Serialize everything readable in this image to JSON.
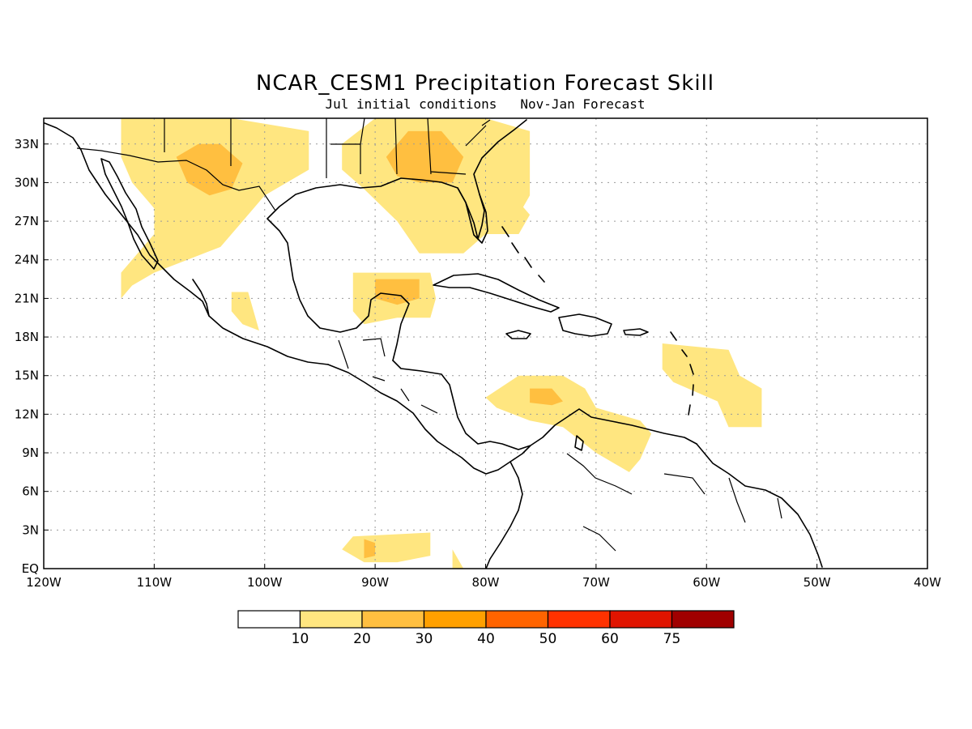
{
  "title": "NCAR_CESM1 Precipitation Forecast Skill",
  "subtitle": "Jul initial conditions   Nov-Jan Forecast",
  "chart_data": {
    "type": "heatmap",
    "title": "NCAR_CESM1 Precipitation Forecast Skill",
    "subtitle": "Jul initial conditions   Nov-Jan Forecast",
    "lon_range": [
      -120,
      -40
    ],
    "lat_range": [
      0,
      35
    ],
    "x_ticks": [
      "120W",
      "110W",
      "100W",
      "90W",
      "80W",
      "70W",
      "60W",
      "50W",
      "40W"
    ],
    "y_ticks": [
      "EQ",
      "3N",
      "6N",
      "9N",
      "12N",
      "15N",
      "18N",
      "21N",
      "24N",
      "27N",
      "30N",
      "33N"
    ],
    "grid": true,
    "colorbar": {
      "placement": "bottom",
      "labels": [
        "10",
        "20",
        "30",
        "40",
        "50",
        "60",
        "75"
      ],
      "colors": [
        "#ffffff",
        "#ffe680",
        "#ffbf40",
        "#ffa000",
        "#ff6400",
        "#ff3200",
        "#e01400",
        "#a00000"
      ]
    },
    "regions": [
      {
        "name": "n-mexico-texas",
        "level": 1,
        "points": [
          [
            -113,
            35
          ],
          [
            -103,
            35
          ],
          [
            -96,
            34
          ],
          [
            -96,
            31
          ],
          [
            -100,
            29
          ],
          [
            -102,
            27
          ],
          [
            -104,
            25
          ],
          [
            -107,
            24
          ],
          [
            -110,
            23
          ],
          [
            -112,
            22
          ],
          [
            -113,
            21
          ],
          [
            -113,
            23
          ],
          [
            -110,
            26
          ],
          [
            -110,
            28
          ],
          [
            -112,
            30
          ],
          [
            -113,
            32
          ]
        ]
      },
      {
        "name": "texas-core",
        "level": 2,
        "points": [
          [
            -108,
            32
          ],
          [
            -106,
            33
          ],
          [
            -104,
            33
          ],
          [
            -102,
            31.5
          ],
          [
            -103,
            29.5
          ],
          [
            -105,
            29
          ],
          [
            -107,
            30
          ]
        ]
      },
      {
        "name": "se-us",
        "level": 1,
        "points": [
          [
            -93,
            33
          ],
          [
            -90,
            35
          ],
          [
            -85,
            35
          ],
          [
            -80,
            35
          ],
          [
            -76,
            34
          ],
          [
            -76,
            29
          ],
          [
            -78,
            26
          ],
          [
            -80,
            26
          ],
          [
            -82,
            24.5
          ],
          [
            -86,
            24.5
          ],
          [
            -88,
            27
          ],
          [
            -91,
            29.5
          ],
          [
            -93,
            31
          ]
        ]
      },
      {
        "name": "se-us-core",
        "level": 2,
        "points": [
          [
            -89,
            32
          ],
          [
            -87,
            34
          ],
          [
            -84,
            34
          ],
          [
            -82,
            32
          ],
          [
            -83,
            30
          ],
          [
            -86,
            30
          ],
          [
            -88,
            30.5
          ]
        ]
      },
      {
        "name": "yucatan",
        "level": 1,
        "points": [
          [
            -92,
            23
          ],
          [
            -85,
            23
          ],
          [
            -84.5,
            21
          ],
          [
            -85,
            19.5
          ],
          [
            -88,
            19.5
          ],
          [
            -91,
            19
          ],
          [
            -92,
            20
          ]
        ]
      },
      {
        "name": "yucatan-core",
        "level": 2,
        "points": [
          [
            -90,
            22.5
          ],
          [
            -86,
            22.5
          ],
          [
            -86,
            21
          ],
          [
            -88,
            20.5
          ],
          [
            -90,
            21
          ]
        ]
      },
      {
        "name": "w-mexico",
        "level": 1,
        "points": [
          [
            -103,
            21.5
          ],
          [
            -101.5,
            21.5
          ],
          [
            -101,
            20
          ],
          [
            -100.5,
            18.5
          ],
          [
            -102,
            19
          ],
          [
            -103,
            20
          ]
        ]
      },
      {
        "name": "caribbean",
        "level": 1,
        "points": [
          [
            -80,
            13.3
          ],
          [
            -77,
            15
          ],
          [
            -73,
            15
          ],
          [
            -71,
            14
          ],
          [
            -70,
            12.5
          ],
          [
            -66,
            11.5
          ],
          [
            -65,
            10.5
          ],
          [
            -66,
            8.5
          ],
          [
            -67,
            7.5
          ],
          [
            -70,
            9
          ],
          [
            -73,
            11
          ],
          [
            -76,
            11.5
          ],
          [
            -79,
            12.5
          ]
        ]
      },
      {
        "name": "caribbean-core",
        "level": 2,
        "points": [
          [
            -76,
            14
          ],
          [
            -74,
            14
          ],
          [
            -73,
            13
          ],
          [
            -74,
            12.7
          ],
          [
            -76,
            12.9
          ]
        ]
      },
      {
        "name": "lesser-antilles",
        "level": 1,
        "points": [
          [
            -64,
            17.5
          ],
          [
            -58,
            17
          ],
          [
            -57,
            15
          ],
          [
            -55,
            14
          ],
          [
            -55,
            11
          ],
          [
            -58,
            11
          ],
          [
            -59,
            13
          ],
          [
            -63,
            14.5
          ],
          [
            -64,
            15.5
          ]
        ]
      },
      {
        "name": "florida-bahamas",
        "level": 1,
        "points": [
          [
            -79,
            27.5
          ],
          [
            -77,
            28.5
          ],
          [
            -76,
            27.5
          ],
          [
            -77,
            26
          ],
          [
            -79,
            26
          ]
        ]
      },
      {
        "name": "eq-pacific",
        "level": 1,
        "points": [
          [
            -92,
            2.5
          ],
          [
            -85,
            2.8
          ],
          [
            -85,
            1
          ],
          [
            -88,
            0.5
          ],
          [
            -91,
            0.5
          ],
          [
            -93,
            1.5
          ]
        ]
      },
      {
        "name": "eq-pacific-core",
        "level": 2,
        "points": [
          [
            -91,
            2.3
          ],
          [
            -90,
            2
          ],
          [
            -90,
            1
          ],
          [
            -91,
            0.8
          ]
        ]
      },
      {
        "name": "colombia-pac",
        "level": 1,
        "points": [
          [
            -83,
            1.5
          ],
          [
            -82,
            0
          ],
          [
            -83,
            0
          ]
        ]
      }
    ]
  }
}
